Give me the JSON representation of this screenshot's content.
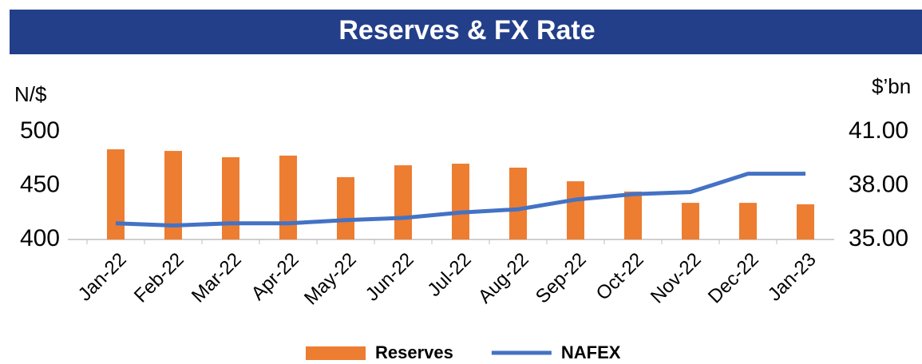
{
  "chart_data": {
    "type": "bar_line",
    "title": "Reserves & FX Rate",
    "y_label": "N/$",
    "y2_label": "$’bn",
    "categories": [
      "Jan-22",
      "Feb-22",
      "Mar-22",
      "Apr-22",
      "May-22",
      "Jun-22",
      "Jul-22",
      "Aug-22",
      "Sep-22",
      "Oct-22",
      "Nov-22",
      "Dec-22",
      "Jan-23"
    ],
    "series": [
      {
        "name": "Reserves",
        "type": "bar",
        "axis": "y2",
        "color": "#ed7d31",
        "values": [
          40.02,
          39.93,
          39.58,
          39.67,
          38.47,
          39.13,
          39.22,
          39.0,
          38.24,
          37.67,
          37.04,
          37.04,
          36.96
        ]
      },
      {
        "name": "NAFEX",
        "type": "line",
        "color": "#4472c4",
        "values": [
          415,
          413,
          415,
          415,
          418,
          420,
          425,
          428,
          437,
          442,
          444,
          461,
          461
        ]
      }
    ],
    "ylim": [
      400,
      500
    ],
    "yticks": [
      400,
      450,
      500
    ],
    "y2lim": [
      35,
      41
    ],
    "y2ticks": [
      {
        "value": 35,
        "label": "35.00"
      },
      {
        "value": 38,
        "label": "38.00"
      },
      {
        "value": 41,
        "label": "41.00"
      }
    ],
    "legend": "bottom",
    "grid": false
  }
}
